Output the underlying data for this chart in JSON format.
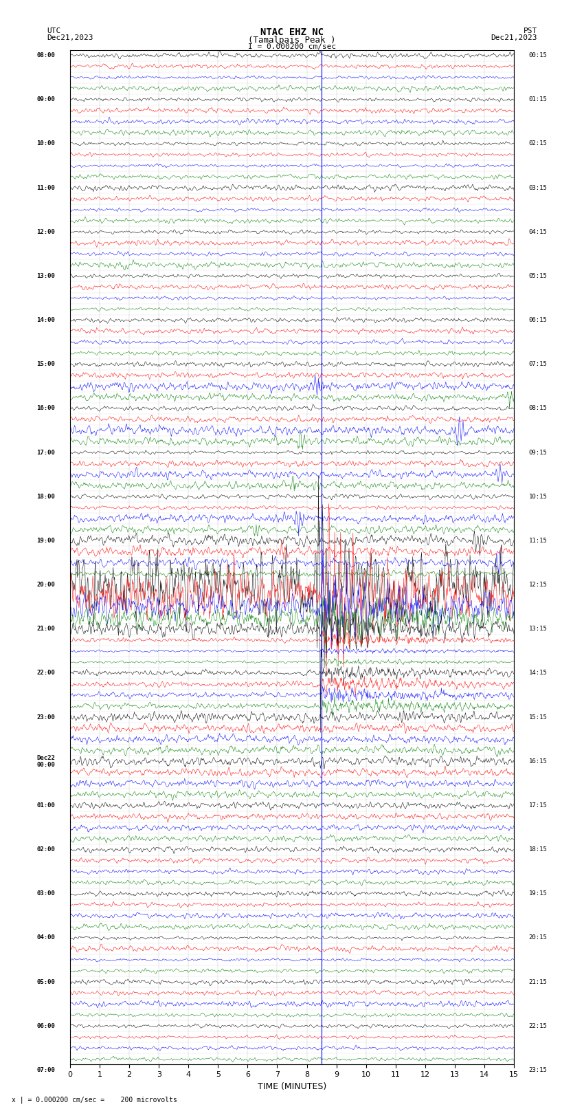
{
  "title_line1": "NTAC EHZ NC",
  "title_line2": "(Tamalpais Peak )",
  "scale_text": "I = 0.000200 cm/sec",
  "utc_label": "UTC",
  "utc_date": "Dec21,2023",
  "pst_label": "PST",
  "pst_date": "Dec21,2023",
  "xlabel": "TIME (MINUTES)",
  "footer_text": "x | = 0.000200 cm/sec =    200 microvolts",
  "bg_color": "#ffffff",
  "trace_colors": [
    "black",
    "red",
    "blue",
    "green"
  ],
  "x_min": 0,
  "x_max": 15,
  "x_ticks": [
    0,
    1,
    2,
    3,
    4,
    5,
    6,
    7,
    8,
    9,
    10,
    11,
    12,
    13,
    14,
    15
  ],
  "num_rows": 92,
  "noise_amplitude": 0.12,
  "eq_time": 8.5,
  "event_amplitude": 2.5,
  "left_labels": [
    "08:00",
    "",
    "",
    "",
    "09:00",
    "",
    "",
    "",
    "10:00",
    "",
    "",
    "",
    "11:00",
    "",
    "",
    "",
    "12:00",
    "",
    "",
    "",
    "13:00",
    "",
    "",
    "",
    "14:00",
    "",
    "",
    "",
    "15:00",
    "",
    "",
    "",
    "16:00",
    "",
    "",
    "",
    "17:00",
    "",
    "",
    "",
    "18:00",
    "",
    "",
    "",
    "19:00",
    "",
    "",
    "",
    "20:00",
    "",
    "",
    "",
    "21:00",
    "",
    "",
    "",
    "22:00",
    "",
    "",
    "",
    "23:00",
    "",
    "",
    "",
    "Dec22\n00:00",
    "",
    "",
    "",
    "01:00",
    "",
    "",
    "",
    "02:00",
    "",
    "",
    "",
    "03:00",
    "",
    "",
    "",
    "04:00",
    "",
    "",
    "",
    "05:00",
    "",
    "",
    "",
    "06:00",
    "",
    "",
    "",
    "07:00",
    "",
    ""
  ],
  "right_labels": [
    "00:15",
    "",
    "",
    "",
    "01:15",
    "",
    "",
    "",
    "02:15",
    "",
    "",
    "",
    "03:15",
    "",
    "",
    "",
    "04:15",
    "",
    "",
    "",
    "05:15",
    "",
    "",
    "",
    "06:15",
    "",
    "",
    "",
    "07:15",
    "",
    "",
    "",
    "08:15",
    "",
    "",
    "",
    "09:15",
    "",
    "",
    "",
    "10:15",
    "",
    "",
    "",
    "11:15",
    "",
    "",
    "",
    "12:15",
    "",
    "",
    "",
    "13:15",
    "",
    "",
    "",
    "14:15",
    "",
    "",
    "",
    "15:15",
    "",
    "",
    "",
    "16:15",
    "",
    "",
    "",
    "17:15",
    "",
    "",
    "",
    "18:15",
    "",
    "",
    "",
    "19:15",
    "",
    "",
    "",
    "20:15",
    "",
    "",
    "",
    "21:15",
    "",
    "",
    "",
    "22:15",
    "",
    "",
    "",
    "23:15",
    "",
    ""
  ]
}
